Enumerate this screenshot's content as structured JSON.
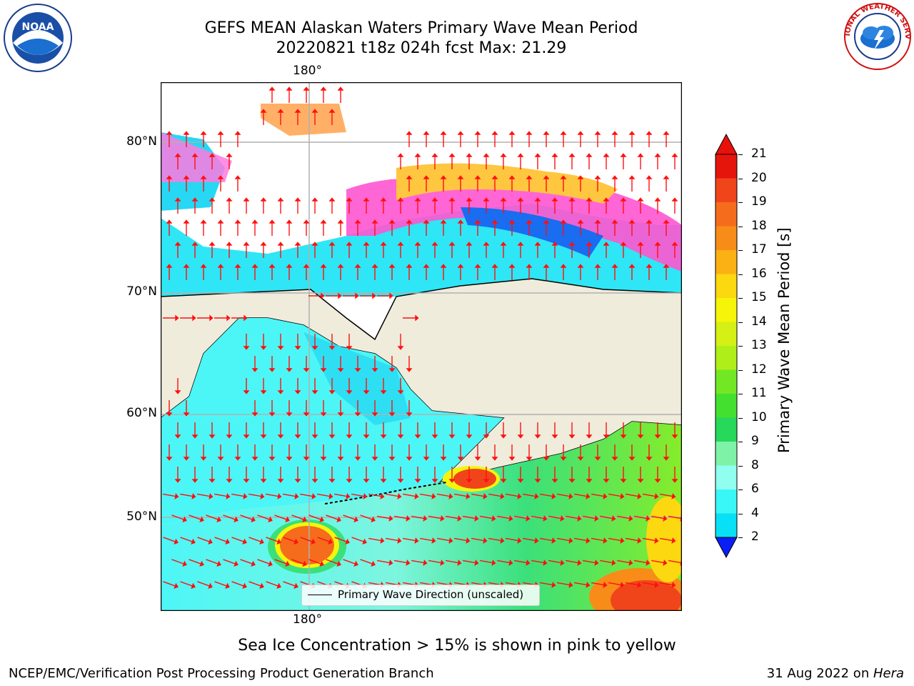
{
  "header": {
    "title_line1": "GEFS MEAN Alaskan Waters Primary Wave Mean Period",
    "title_line2": "20220821 t18z 024h fcst   Max: 21.29"
  },
  "logos": {
    "left": {
      "icon": "noaa-logo",
      "text": "NOAA"
    },
    "right": {
      "icon": "nws-logo",
      "text": "NATIONAL WEATHER SERVICE"
    }
  },
  "map": {
    "lon_top_label": "180°",
    "lon_bottom_label": "180°",
    "lat_labels": [
      "80°N",
      "70°N",
      "60°N",
      "50°N"
    ],
    "legend_text": "Primary Wave Direction (unscaled)"
  },
  "colorbar": {
    "label": "Primary Wave Mean Period [s]",
    "ticks": [
      "21",
      "20",
      "19",
      "18",
      "17",
      "16",
      "15",
      "14",
      "13",
      "12",
      "11",
      "10",
      "9",
      "8",
      "6",
      "4",
      "2"
    ],
    "colors": [
      "#e6150c",
      "#f0451a",
      "#f56c1c",
      "#f88c18",
      "#fbb014",
      "#fbd80f",
      "#f5f50a",
      "#d4f014",
      "#b0ee1a",
      "#72e824",
      "#44e030",
      "#26d95a",
      "#7ef3a8",
      "#90fff0",
      "#3af7f7",
      "#08e0f5",
      "#1a6cf0"
    ],
    "under_color": "#0a1ef5",
    "over_color": "#e8100a"
  },
  "footer": {
    "note": "Sea Ice Concentration > 15% is shown in pink to yellow",
    "left": "NCEP/EMC/Verification Post Processing Product Generation Branch",
    "right_date": "31 Aug 2022 on ",
    "right_machine": "Hera"
  }
}
